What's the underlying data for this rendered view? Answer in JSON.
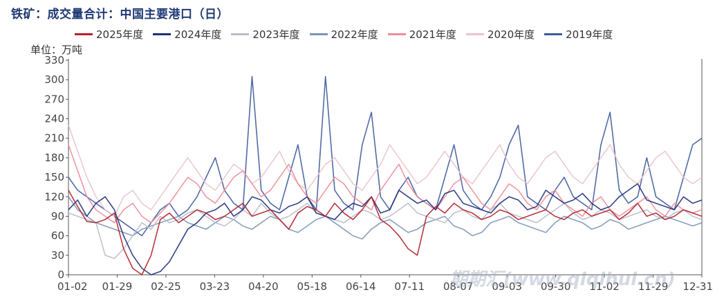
{
  "chart_data": {
    "type": "line",
    "title": "铁矿：成交量合计：中国主要港口（日）",
    "ylabel": "单位：万吨",
    "ylim": [
      0,
      330
    ],
    "yticks": [
      0,
      30,
      60,
      90,
      120,
      150,
      180,
      210,
      240,
      270,
      300,
      330
    ],
    "x_tick_labels": [
      "01-02",
      "01-29",
      "02-25",
      "03-23",
      "04-20",
      "05-18",
      "06-14",
      "07-11",
      "08-07",
      "09-03",
      "09-30",
      "11-02",
      "11-29",
      "12-31"
    ],
    "grid": false,
    "legend_position": "top",
    "series": [
      {
        "name": "2025年度",
        "color": "#b3202b",
        "values": [
          130,
          105,
          82,
          80,
          85,
          95,
          40,
          10,
          0,
          30,
          85,
          95,
          80,
          90,
          100,
          95,
          85,
          90,
          100,
          110,
          90,
          95,
          100,
          85,
          70,
          95,
          105,
          100,
          90,
          110,
          95,
          85,
          100,
          120,
          85,
          75,
          60,
          40,
          30,
          90,
          105,
          95,
          110,
          100,
          95,
          85,
          90,
          100,
          95,
          85,
          90,
          95,
          100,
          90,
          85,
          95,
          100,
          90,
          95,
          100,
          85,
          95,
          110,
          90,
          95,
          85,
          90,
          100,
          95,
          90
        ]
      },
      {
        "name": "2024年度",
        "color": "#1e2f7a",
        "values": [
          100,
          115,
          90,
          110,
          120,
          100,
          60,
          30,
          10,
          0,
          5,
          20,
          45,
          70,
          80,
          95,
          100,
          110,
          90,
          100,
          120,
          115,
          100,
          95,
          105,
          110,
          120,
          95,
          90,
          85,
          100,
          110,
          105,
          120,
          95,
          100,
          130,
          120,
          110,
          115,
          100,
          125,
          130,
          110,
          105,
          100,
          95,
          110,
          120,
          115,
          100,
          105,
          130,
          120,
          110,
          115,
          125,
          110,
          100,
          105,
          120,
          130,
          140,
          115,
          110,
          105,
          100,
          120,
          110,
          115
        ]
      },
      {
        "name": "2023年度",
        "color": "#b8bcc6",
        "values": [
          95,
          90,
          85,
          80,
          30,
          25,
          40,
          60,
          80,
          70,
          90,
          80,
          85,
          95,
          100,
          90,
          80,
          75,
          85,
          100,
          90,
          110,
          95,
          85,
          90,
          100,
          110,
          95,
          90,
          85,
          80,
          90,
          100,
          95,
          85,
          90,
          100,
          110,
          95,
          90,
          85,
          80,
          95,
          100,
          90,
          85,
          100,
          110,
          95,
          90,
          85,
          80,
          90,
          100,
          110,
          95,
          85,
          90,
          100,
          95,
          85,
          90,
          95,
          100,
          90,
          85,
          95,
          100,
          90,
          85
        ]
      },
      {
        "name": "2022年度",
        "color": "#7c95b6",
        "values": [
          120,
          100,
          90,
          80,
          75,
          70,
          65,
          60,
          70,
          75,
          80,
          85,
          90,
          80,
          75,
          70,
          80,
          90,
          85,
          75,
          70,
          80,
          90,
          85,
          70,
          65,
          75,
          85,
          90,
          80,
          70,
          60,
          55,
          70,
          80,
          85,
          75,
          65,
          70,
          80,
          85,
          90,
          75,
          70,
          60,
          65,
          80,
          85,
          90,
          80,
          75,
          70,
          65,
          80,
          90,
          85,
          80,
          70,
          75,
          85,
          80,
          70,
          75,
          80,
          85,
          90,
          85,
          80,
          75,
          80
        ]
      },
      {
        "name": "2021年度",
        "color": "#ec8c99",
        "values": [
          200,
          160,
          120,
          100,
          90,
          80,
          100,
          110,
          90,
          80,
          95,
          110,
          130,
          150,
          140,
          120,
          110,
          130,
          150,
          160,
          140,
          120,
          130,
          150,
          170,
          140,
          120,
          110,
          130,
          150,
          140,
          120,
          110,
          100,
          130,
          150,
          170,
          140,
          120,
          110,
          100,
          120,
          140,
          150,
          130,
          110,
          100,
          120,
          140,
          130,
          110,
          100,
          120,
          130,
          110,
          100,
          90,
          110,
          120,
          100,
          90,
          100,
          110,
          120,
          100,
          90,
          110,
          100,
          95,
          100
        ]
      },
      {
        "name": "2020年度",
        "color": "#eac3cb",
        "values": [
          230,
          190,
          150,
          120,
          100,
          90,
          120,
          130,
          110,
          100,
          120,
          140,
          160,
          180,
          160,
          140,
          130,
          150,
          170,
          160,
          140,
          150,
          170,
          190,
          160,
          140,
          130,
          150,
          170,
          180,
          160,
          140,
          130,
          150,
          170,
          200,
          180,
          160,
          140,
          150,
          170,
          190,
          170,
          150,
          140,
          160,
          180,
          200,
          170,
          150,
          140,
          160,
          180,
          190,
          170,
          150,
          140,
          160,
          180,
          200,
          170,
          150,
          140,
          160,
          180,
          190,
          170,
          150,
          140,
          150
        ]
      },
      {
        "name": "2019年度",
        "color": "#3e5b9c",
        "values": [
          150,
          130,
          120,
          110,
          100,
          90,
          80,
          70,
          60,
          80,
          100,
          110,
          90,
          100,
          120,
          150,
          180,
          130,
          110,
          100,
          305,
          130,
          110,
          100,
          150,
          200,
          120,
          100,
          305,
          130,
          110,
          100,
          200,
          250,
          120,
          100,
          130,
          150,
          120,
          110,
          100,
          150,
          200,
          130,
          110,
          100,
          120,
          150,
          200,
          230,
          120,
          110,
          100,
          130,
          150,
          120,
          110,
          100,
          200,
          250,
          130,
          110,
          120,
          180,
          120,
          110,
          100,
          150,
          200,
          210
        ]
      }
    ]
  },
  "watermark": "期期汇(www.qiqihui.cn)"
}
